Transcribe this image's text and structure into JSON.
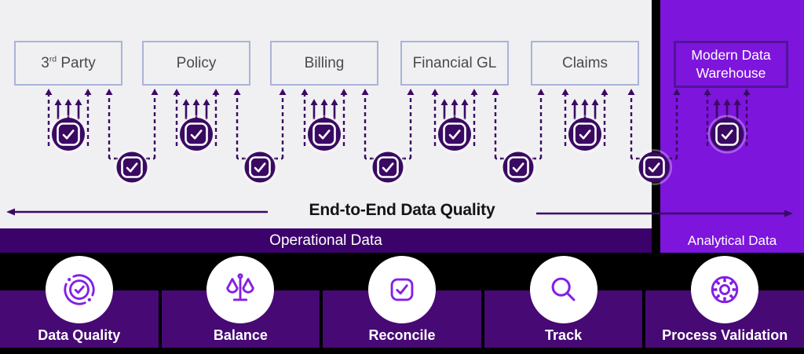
{
  "title": "End-to-End Data Quality",
  "sections": {
    "operational_label": "Operational Data",
    "analytical_label": "Analytical Data"
  },
  "source_boxes": [
    {
      "pre": "3",
      "sup": "rd",
      "post": " Party"
    },
    {
      "pre": "Policy",
      "sup": "",
      "post": ""
    },
    {
      "pre": "Billing",
      "sup": "",
      "post": ""
    },
    {
      "pre": "Financial GL",
      "sup": "",
      "post": ""
    },
    {
      "pre": "Claims",
      "sup": "",
      "post": ""
    }
  ],
  "warehouse_box": {
    "label": "Modern Data Warehouse"
  },
  "process_steps": [
    {
      "label": "Data Quality",
      "icon": "gauge-check-icon"
    },
    {
      "label": "Balance",
      "icon": "balance-scale-icon"
    },
    {
      "label": "Reconcile",
      "icon": "square-check-icon"
    },
    {
      "label": "Track",
      "icon": "magnifier-icon"
    },
    {
      "label": "Process Validation",
      "icon": "gear-icon"
    }
  ],
  "colors": {
    "light_section_bg": "#F0F0F2",
    "bright_purple": "#7D15DC",
    "deep_purple_arrows": "#3A0A63",
    "operational_banner": "#3C026B",
    "panel_purple": "#470974",
    "source_box_border": "#A9B3D9",
    "warehouse_box_border": "#51149A",
    "icon_purple": "#8320E4"
  }
}
